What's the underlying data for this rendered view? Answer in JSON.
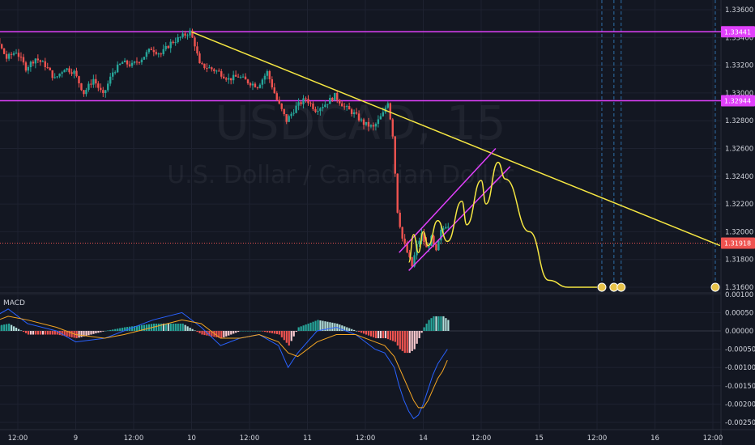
{
  "chart_data": {
    "type": "candlestick",
    "symbol": "USDCAD",
    "interval": "15",
    "description": "U.S. Dollar / Canadian Dollar",
    "colors": {
      "background": "#131722",
      "grid": "#1e2230",
      "up": "#26a69a",
      "down": "#ef5350",
      "resistance_line": "#e040fb",
      "trendline": "#f5e642",
      "current_price_line": "#ef5350",
      "macd_line": "#2962ff",
      "signal_line": "#f5a623",
      "dashed_event": "#2f6fa8"
    },
    "x_axis": {
      "type": "time",
      "tick_labels": [
        "12:00",
        "9",
        "12:00",
        "10",
        "12:00",
        "11",
        "12:00",
        "14",
        "12:00",
        "15",
        "12:00",
        "16",
        "12:00"
      ],
      "tick_times_h": [
        12,
        24,
        36,
        48,
        60,
        72,
        84,
        96,
        108,
        120,
        132,
        144,
        156
      ]
    },
    "price_axis": {
      "range": [
        1.315,
        1.337
      ],
      "tick_labels": [
        "1.33600",
        "1.33400",
        "1.33200",
        "1.33000",
        "1.32800",
        "1.32600",
        "1.32400",
        "1.32200",
        "1.32000",
        "1.31800",
        "1.31600"
      ],
      "tick_values": [
        1.336,
        1.334,
        1.332,
        1.33,
        1.328,
        1.326,
        1.324,
        1.322,
        1.32,
        1.318,
        1.316
      ]
    },
    "horizontal_levels": [
      {
        "price": 1.33441,
        "label": "1.33441",
        "color": "#e040fb"
      },
      {
        "price": 1.32944,
        "label": "1.32944",
        "color": "#e040fb"
      }
    ],
    "current_price": {
      "price": 1.31918,
      "label": "1.31918",
      "color": "#ef5350"
    },
    "last_price_label": {
      "price": 1.316,
      "label": "1.31600"
    },
    "price_path": [
      {
        "t": 0,
        "p": 1.33
      },
      {
        "t": 2,
        "p": 1.331
      },
      {
        "t": 4,
        "p": 1.3335
      },
      {
        "t": 6,
        "p": 1.3322
      },
      {
        "t": 8,
        "p": 1.3338
      },
      {
        "t": 10,
        "p": 1.3325
      },
      {
        "t": 12,
        "p": 1.333
      },
      {
        "t": 14,
        "p": 1.3318
      },
      {
        "t": 16,
        "p": 1.3325
      },
      {
        "t": 18,
        "p": 1.332
      },
      {
        "t": 20,
        "p": 1.331
      },
      {
        "t": 22,
        "p": 1.3318
      },
      {
        "t": 24,
        "p": 1.3315
      },
      {
        "t": 26,
        "p": 1.33
      },
      {
        "t": 28,
        "p": 1.331
      },
      {
        "t": 30,
        "p": 1.3298
      },
      {
        "t": 32,
        "p": 1.3315
      },
      {
        "t": 34,
        "p": 1.3322
      },
      {
        "t": 36,
        "p": 1.332
      },
      {
        "t": 38,
        "p": 1.3325
      },
      {
        "t": 40,
        "p": 1.3332
      },
      {
        "t": 42,
        "p": 1.3328
      },
      {
        "t": 44,
        "p": 1.3336
      },
      {
        "t": 46,
        "p": 1.334
      },
      {
        "t": 48,
        "p": 1.3344
      },
      {
        "t": 49,
        "p": 1.3335
      },
      {
        "t": 50,
        "p": 1.332
      },
      {
        "t": 52,
        "p": 1.3318
      },
      {
        "t": 54,
        "p": 1.3315
      },
      {
        "t": 56,
        "p": 1.331
      },
      {
        "t": 58,
        "p": 1.3312
      },
      {
        "t": 60,
        "p": 1.3308
      },
      {
        "t": 62,
        "p": 1.3305
      },
      {
        "t": 64,
        "p": 1.3315
      },
      {
        "t": 66,
        "p": 1.3295
      },
      {
        "t": 68,
        "p": 1.328
      },
      {
        "t": 70,
        "p": 1.329
      },
      {
        "t": 72,
        "p": 1.3296
      },
      {
        "t": 74,
        "p": 1.3288
      },
      {
        "t": 76,
        "p": 1.3292
      },
      {
        "t": 78,
        "p": 1.3298
      },
      {
        "t": 80,
        "p": 1.329
      },
      {
        "t": 82,
        "p": 1.3285
      },
      {
        "t": 84,
        "p": 1.3278
      },
      {
        "t": 86,
        "p": 1.3275
      },
      {
        "t": 88,
        "p": 1.3285
      },
      {
        "t": 89,
        "p": 1.3294
      },
      {
        "t": 90,
        "p": 1.327
      },
      {
        "t": 91,
        "p": 1.3215
      },
      {
        "t": 92,
        "p": 1.3195
      },
      {
        "t": 93,
        "p": 1.3185
      },
      {
        "t": 94,
        "p": 1.3175
      },
      {
        "t": 95,
        "p": 1.319
      },
      {
        "t": 96,
        "p": 1.3198
      },
      {
        "t": 97,
        "p": 1.3188
      },
      {
        "t": 98,
        "p": 1.3195
      },
      {
        "t": 99,
        "p": 1.3185
      },
      {
        "t": 100,
        "p": 1.32
      },
      {
        "t": 101,
        "p": 1.3205
      }
    ],
    "macd": {
      "title": "MACD",
      "range": [
        -0.0024,
        0.001
      ],
      "tick_labels": [
        "0.00100",
        "0.00050",
        "0.00000",
        "-0.00050",
        "-0.00100",
        "-0.00150",
        "-0.00200",
        "-0.00250"
      ],
      "tick_values": [
        0.001,
        0.0005,
        0.0,
        -0.0005,
        -0.001,
        -0.0015,
        -0.002,
        -0.0025
      ],
      "macd_line": [
        {
          "t": 0,
          "v": 0.0001
        },
        {
          "t": 6,
          "v": 0.0003
        },
        {
          "t": 10,
          "v": 0.0006
        },
        {
          "t": 14,
          "v": 0.0002
        },
        {
          "t": 20,
          "v": 0.0
        },
        {
          "t": 24,
          "v": -0.0003
        },
        {
          "t": 30,
          "v": -0.0002
        },
        {
          "t": 34,
          "v": 0.0
        },
        {
          "t": 40,
          "v": 0.0003
        },
        {
          "t": 46,
          "v": 0.0005
        },
        {
          "t": 50,
          "v": 0.0001
        },
        {
          "t": 54,
          "v": -0.0004
        },
        {
          "t": 58,
          "v": -0.0002
        },
        {
          "t": 62,
          "v": -0.0001
        },
        {
          "t": 66,
          "v": -0.0004
        },
        {
          "t": 68,
          "v": -0.001
        },
        {
          "t": 70,
          "v": -0.0006
        },
        {
          "t": 74,
          "v": 0.0
        },
        {
          "t": 78,
          "v": 0.0001
        },
        {
          "t": 82,
          "v": -0.0001
        },
        {
          "t": 86,
          "v": -0.0005
        },
        {
          "t": 88,
          "v": -0.0006
        },
        {
          "t": 90,
          "v": -0.001
        },
        {
          "t": 91,
          "v": -0.0015
        },
        {
          "t": 92,
          "v": -0.0019
        },
        {
          "t": 93,
          "v": -0.0022
        },
        {
          "t": 94,
          "v": -0.0024
        },
        {
          "t": 95,
          "v": -0.0023
        },
        {
          "t": 96,
          "v": -0.002
        },
        {
          "t": 97,
          "v": -0.0016
        },
        {
          "t": 98,
          "v": -0.0012
        },
        {
          "t": 99,
          "v": -0.0009
        },
        {
          "t": 100,
          "v": -0.0007
        },
        {
          "t": 101,
          "v": -0.0005
        }
      ],
      "signal_line": [
        {
          "t": 0,
          "v": 0.0
        },
        {
          "t": 6,
          "v": 0.0002
        },
        {
          "t": 10,
          "v": 0.0004
        },
        {
          "t": 14,
          "v": 0.0003
        },
        {
          "t": 20,
          "v": 0.0001
        },
        {
          "t": 24,
          "v": -0.0001
        },
        {
          "t": 30,
          "v": -0.0002
        },
        {
          "t": 34,
          "v": -0.0001
        },
        {
          "t": 40,
          "v": 0.0001
        },
        {
          "t": 46,
          "v": 0.0003
        },
        {
          "t": 50,
          "v": 0.0002
        },
        {
          "t": 54,
          "v": -0.0002
        },
        {
          "t": 58,
          "v": -0.0002
        },
        {
          "t": 62,
          "v": -0.0001
        },
        {
          "t": 66,
          "v": -0.0003
        },
        {
          "t": 68,
          "v": -0.0006
        },
        {
          "t": 70,
          "v": -0.0007
        },
        {
          "t": 74,
          "v": -0.0003
        },
        {
          "t": 78,
          "v": -0.0001
        },
        {
          "t": 82,
          "v": -0.0001
        },
        {
          "t": 86,
          "v": -0.0003
        },
        {
          "t": 88,
          "v": -0.0004
        },
        {
          "t": 90,
          "v": -0.0007
        },
        {
          "t": 91,
          "v": -0.001
        },
        {
          "t": 92,
          "v": -0.0013
        },
        {
          "t": 93,
          "v": -0.0016
        },
        {
          "t": 94,
          "v": -0.0019
        },
        {
          "t": 95,
          "v": -0.0021
        },
        {
          "t": 96,
          "v": -0.0021
        },
        {
          "t": 97,
          "v": -0.0019
        },
        {
          "t": 98,
          "v": -0.0016
        },
        {
          "t": 99,
          "v": -0.0013
        },
        {
          "t": 100,
          "v": -0.0011
        },
        {
          "t": 101,
          "v": -0.0008
        }
      ]
    },
    "drawings": {
      "descending_trendline": {
        "from": {
          "t": 48,
          "p": 1.3344
        },
        "to": {
          "t": 157.5,
          "p": 1.319
        }
      },
      "ascending_channel": {
        "upper": {
          "from": {
            "t": 91,
            "p": 1.3185
          },
          "to": {
            "t": 111,
            "p": 1.326
          }
        },
        "lower": {
          "from": {
            "t": 93,
            "p": 1.3172
          },
          "to": {
            "t": 114,
            "p": 1.3247
          }
        }
      },
      "projection_path": [
        {
          "t": 93,
          "p": 1.3178
        },
        {
          "t": 94,
          "p": 1.3198
        },
        {
          "t": 95,
          "p": 1.3185
        },
        {
          "t": 96,
          "p": 1.32
        },
        {
          "t": 97,
          "p": 1.319
        },
        {
          "t": 99,
          "p": 1.3208
        },
        {
          "t": 101,
          "p": 1.3193
        },
        {
          "t": 104,
          "p": 1.3222
        },
        {
          "t": 105,
          "p": 1.3205
        },
        {
          "t": 108,
          "p": 1.3237
        },
        {
          "t": 109,
          "p": 1.322
        },
        {
          "t": 111.5,
          "p": 1.325
        },
        {
          "t": 113,
          "p": 1.3238
        },
        {
          "t": 118,
          "p": 1.32
        },
        {
          "t": 122,
          "p": 1.3165
        },
        {
          "t": 126,
          "p": 1.316
        },
        {
          "t": 132,
          "p": 1.316
        }
      ],
      "event_dashed_lines_t": [
        133,
        135.5,
        137,
        156.5
      ]
    }
  }
}
